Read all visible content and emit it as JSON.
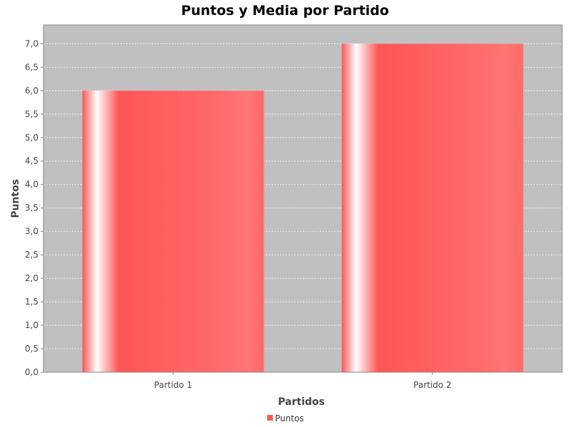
{
  "chart_data": {
    "type": "bar",
    "title": "Puntos y Media por Partido",
    "xlabel": "Partidos",
    "ylabel": "Puntos",
    "categories": [
      "Partido 1",
      "Partido 2"
    ],
    "series": [
      {
        "name": "Puntos",
        "values": [
          6.0,
          7.0
        ],
        "color": "#ff5555"
      }
    ],
    "ylim": [
      0,
      7.4
    ],
    "yticks": [
      "0,0",
      "0,5",
      "1,0",
      "1,5",
      "2,0",
      "2,5",
      "3,0",
      "3,5",
      "4,0",
      "4,5",
      "5,0",
      "5,5",
      "6,0",
      "6,5",
      "7,0"
    ],
    "grid": true,
    "legend": "bottom",
    "plot_background": "#c0c0c0"
  }
}
